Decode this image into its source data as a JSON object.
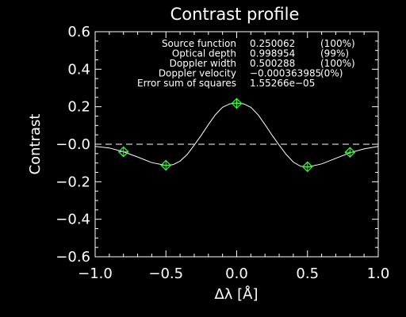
{
  "colors": {
    "background": "#000000",
    "foreground": "#ffffff",
    "marker": "#33ff33"
  },
  "chart_data": {
    "type": "line",
    "title": "Contrast profile",
    "xlabel": "Δλ [Å]",
    "ylabel": "Contrast",
    "xlim": [
      -1.0,
      1.0
    ],
    "ylim": [
      -0.6,
      0.6
    ],
    "grid": false,
    "x_ticks": [
      "−1.0",
      "−0.5",
      "0.0",
      "0.5",
      "1.0"
    ],
    "y_ticks": [
      "0.6",
      "0.4",
      "0.2",
      "−0.0",
      "−0.2",
      "−0.4",
      "−0.6"
    ],
    "series": [
      {
        "style": "solid",
        "x": [
          -1.0,
          -0.9,
          -0.8,
          -0.7,
          -0.6,
          -0.5,
          -0.45,
          -0.4,
          -0.35,
          -0.3,
          -0.25,
          -0.2,
          -0.15,
          -0.1,
          -0.05,
          0.0,
          0.05,
          0.1,
          0.15,
          0.2,
          0.25,
          0.3,
          0.35,
          0.4,
          0.45,
          0.5,
          0.6,
          0.7,
          0.8,
          0.9,
          1.0
        ],
        "y": [
          -0.012,
          -0.02,
          -0.04,
          -0.068,
          -0.098,
          -0.113,
          -0.109,
          -0.09,
          -0.055,
          -0.005,
          0.048,
          0.105,
          0.158,
          0.197,
          0.215,
          0.22,
          0.215,
          0.197,
          0.158,
          0.105,
          0.048,
          -0.005,
          -0.055,
          -0.095,
          -0.117,
          -0.122,
          -0.105,
          -0.075,
          -0.045,
          -0.025,
          -0.012
        ]
      },
      {
        "style": "dashed",
        "x": [
          -1.0,
          1.0
        ],
        "y": [
          0.0,
          0.0
        ]
      },
      {
        "style": "markers",
        "x": [
          -0.8,
          -0.5,
          0.0,
          0.5,
          0.8
        ],
        "y": [
          -0.04,
          -0.112,
          0.218,
          -0.12,
          -0.043
        ]
      }
    ],
    "annotations": [
      {
        "label": "Source function",
        "value": "0.250062",
        "pct": "(100%)"
      },
      {
        "label": "Optical depth",
        "value": "0.998954",
        "pct": "(99%)"
      },
      {
        "label": "Doppler width",
        "value": "0.500288",
        "pct": "(100%)"
      },
      {
        "label": "Doppler velocity",
        "value": "−0.000363985",
        "pct": "(0%)"
      },
      {
        "label": "Error sum of squares",
        "value": "1.55266e−05",
        "pct": ""
      }
    ]
  }
}
